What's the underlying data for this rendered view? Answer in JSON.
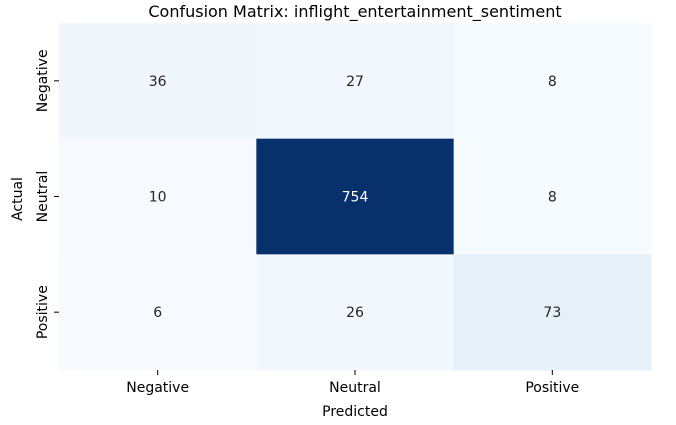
{
  "chart_data": {
    "type": "heatmap",
    "title": "Confusion Matrix: inflight_entertainment_sentiment",
    "xlabel": "Predicted",
    "ylabel": "Actual",
    "x_categories": [
      "Negative",
      "Neutral",
      "Positive"
    ],
    "y_categories": [
      "Negative",
      "Neutral",
      "Positive"
    ],
    "values": [
      [
        36,
        27,
        8
      ],
      [
        10,
        754,
        8
      ],
      [
        6,
        26,
        73
      ]
    ],
    "colormap": "Blues",
    "colors": {
      "low": "#f7fbff",
      "high": "#08306b",
      "dark_text": "#262626",
      "light_text": "#ffffff"
    },
    "colorbar": false
  }
}
